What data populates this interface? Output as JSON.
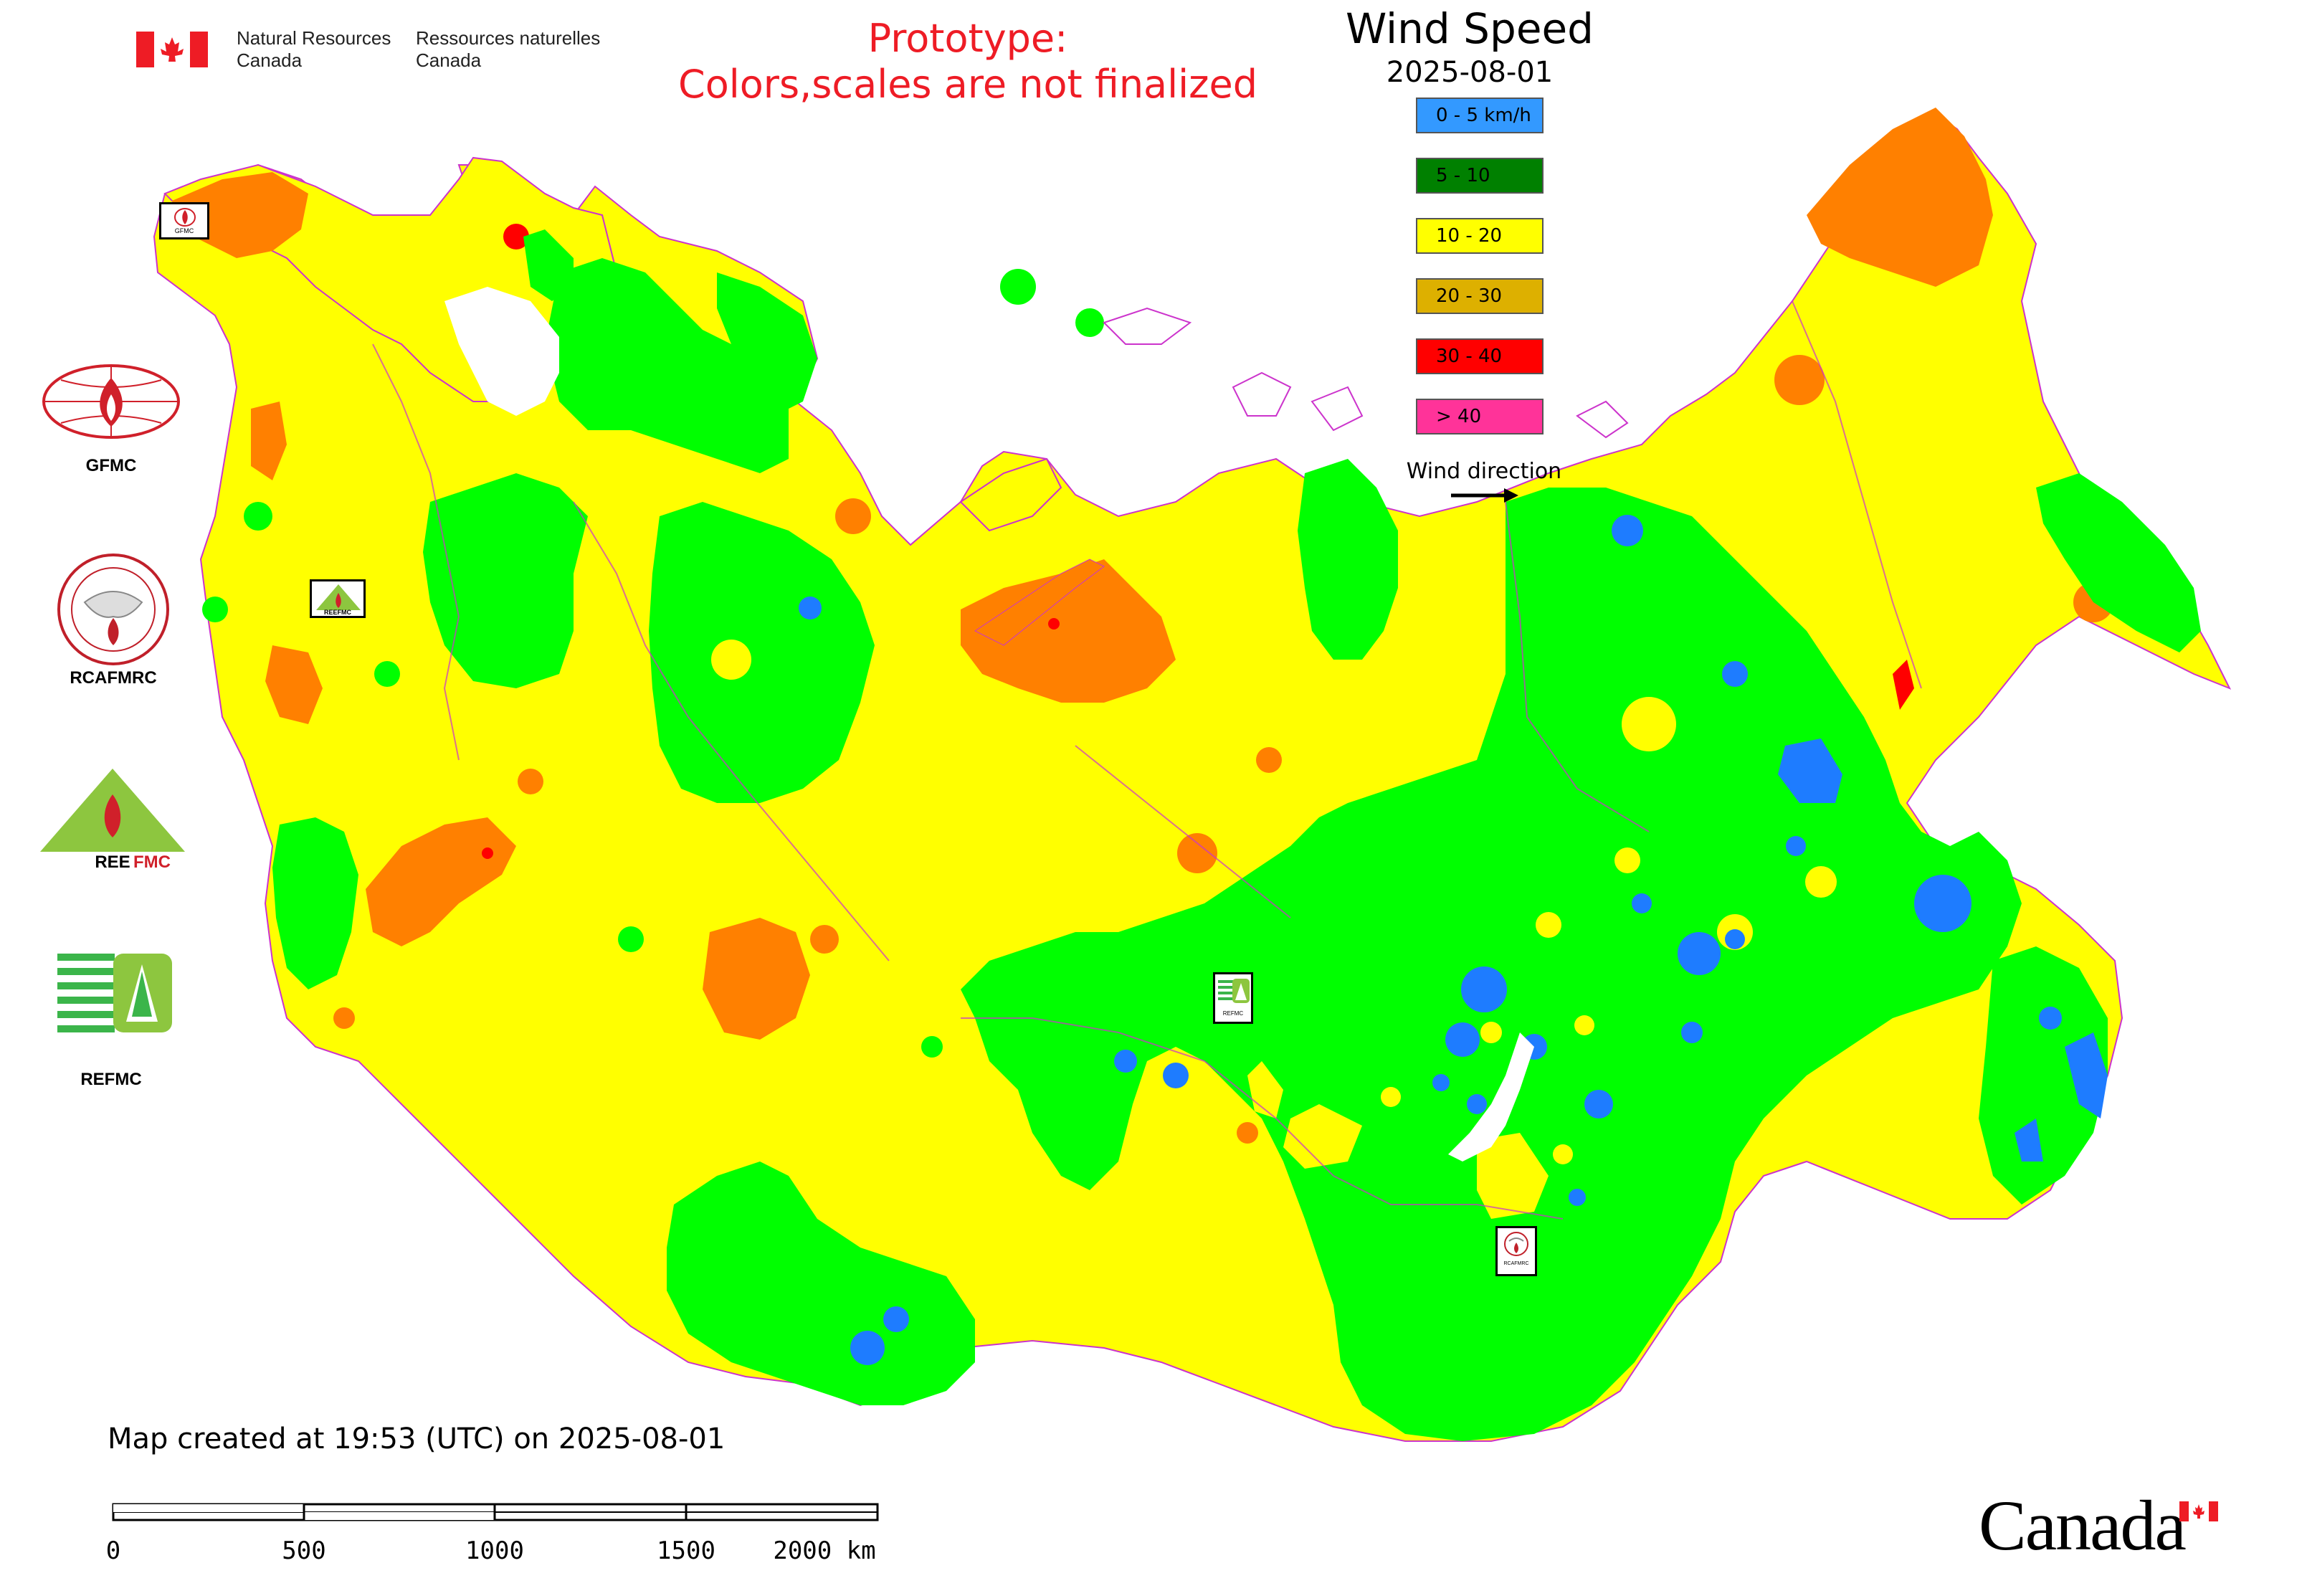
{
  "header": {
    "agency_en_line1": "Natural Resources",
    "agency_en_line2": "Canada",
    "agency_fr_line1": "Ressources naturelles",
    "agency_fr_line2": "Canada",
    "prototype_line1": "Prototype:",
    "prototype_line2": "Colors,scales are not finalized"
  },
  "legend": {
    "title": "Wind Speed",
    "date": "2025-08-01",
    "items": [
      {
        "label": "0 - 5 km/h",
        "color": "#3399ff"
      },
      {
        "label": "5 - 10",
        "color": "#008000"
      },
      {
        "label": "10 - 20",
        "color": "#ffff00"
      },
      {
        "label": "20 - 30",
        "color": "#ddb000"
      },
      {
        "label": "30 - 40",
        "color": "#ff0000"
      },
      {
        "label": "> 40",
        "color": "#ff3399"
      }
    ],
    "wind_direction_label": "Wind direction"
  },
  "map_colors": {
    "calm": "#1e7cff",
    "low": "#00ff00",
    "mid": "#ffff00",
    "high": "#ff8000",
    "very_high": "#ff0000",
    "border": "#cc33cc"
  },
  "logos": [
    {
      "label": "GFMC"
    },
    {
      "label": "RCAFMRC"
    },
    {
      "label": "REEFMC"
    },
    {
      "label": "REFMC"
    }
  ],
  "map_markers": [
    {
      "label": "GFMC"
    },
    {
      "label": "REEFMC"
    },
    {
      "label": "REFMC"
    },
    {
      "label": "RCAFMRC"
    }
  ],
  "footer": {
    "created": "Map created at 19:53 (UTC) on 2025-08-01",
    "scale_ticks": [
      "0",
      "500",
      "1000",
      "1500",
      "2000 km"
    ],
    "canada_wordmark": "Canada"
  }
}
